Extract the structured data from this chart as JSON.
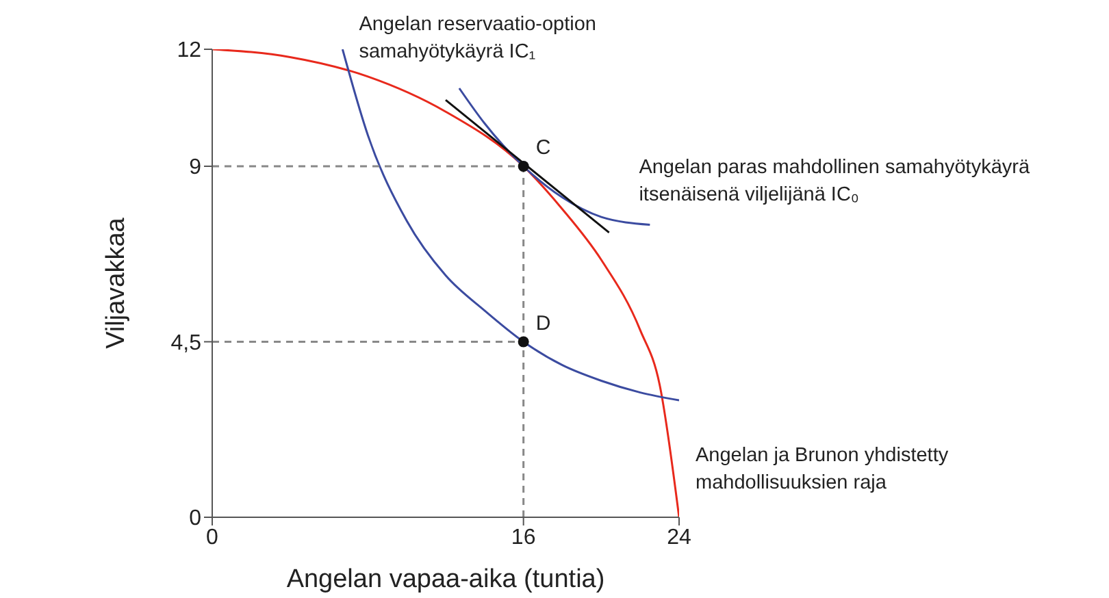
{
  "chart_data": {
    "type": "line",
    "xlabel": "Angelan vapaa-aika (tuntia)",
    "ylabel": "Viljavakkaa",
    "xlim": [
      0,
      24
    ],
    "xticks": [
      0,
      16,
      24
    ],
    "ylim": [
      0,
      12
    ],
    "yticks": [
      0,
      {
        "value": 4.5,
        "label": "4,5"
      },
      9,
      12
    ],
    "series": [
      {
        "name": "Angelan ja Brunon yhdistetty mahdollisuuksien raja",
        "color": "#e8291c",
        "x": [
          0,
          4,
          8,
          12,
          16,
          18,
          20,
          22,
          23,
          24
        ],
        "values": [
          12,
          11.8,
          11.3,
          10.4,
          9,
          7.9,
          6.6,
          4.8,
          3.4,
          0
        ]
      },
      {
        "name": "Angelan reservaatio-option samahyötykäyrä IC₁",
        "color": "#3b4ba0",
        "x": [
          6.7,
          8,
          10,
          12,
          14,
          16,
          18,
          20,
          22,
          24
        ],
        "values": [
          12,
          9.8,
          7.6,
          6.2,
          5.3,
          4.5,
          3.9,
          3.5,
          3.2,
          3.0
        ]
      },
      {
        "name": "Angelan paras mahdollinen samahyötykäyrä itsenäisenä viljelijänä IC₀",
        "color": "#3b4ba0",
        "x": [
          12.7,
          14,
          16,
          18,
          20,
          22.5
        ],
        "values": [
          11,
          10.1,
          9,
          8.2,
          7.7,
          7.5
        ]
      },
      {
        "color": "#111111",
        "x": [
          12,
          20.4
        ],
        "values": [
          10.7,
          7.3
        ]
      },
      {
        "color": "#888888",
        "line_style": "dashed",
        "x": [
          0,
          16
        ],
        "values": [
          9,
          9
        ]
      },
      {
        "color": "#888888",
        "line_style": "dashed",
        "x": [
          0,
          16
        ],
        "values": [
          4.5,
          4.5
        ]
      },
      {
        "color": "#888888",
        "line_style": "dashed",
        "x": [
          16,
          16
        ],
        "values": [
          0,
          9
        ]
      },
      {
        "type": "scatter",
        "color": "#111111",
        "x": [
          16,
          16
        ],
        "values": [
          9,
          4.5
        ],
        "value_labels": [
          "C",
          "D"
        ]
      }
    ]
  }
}
